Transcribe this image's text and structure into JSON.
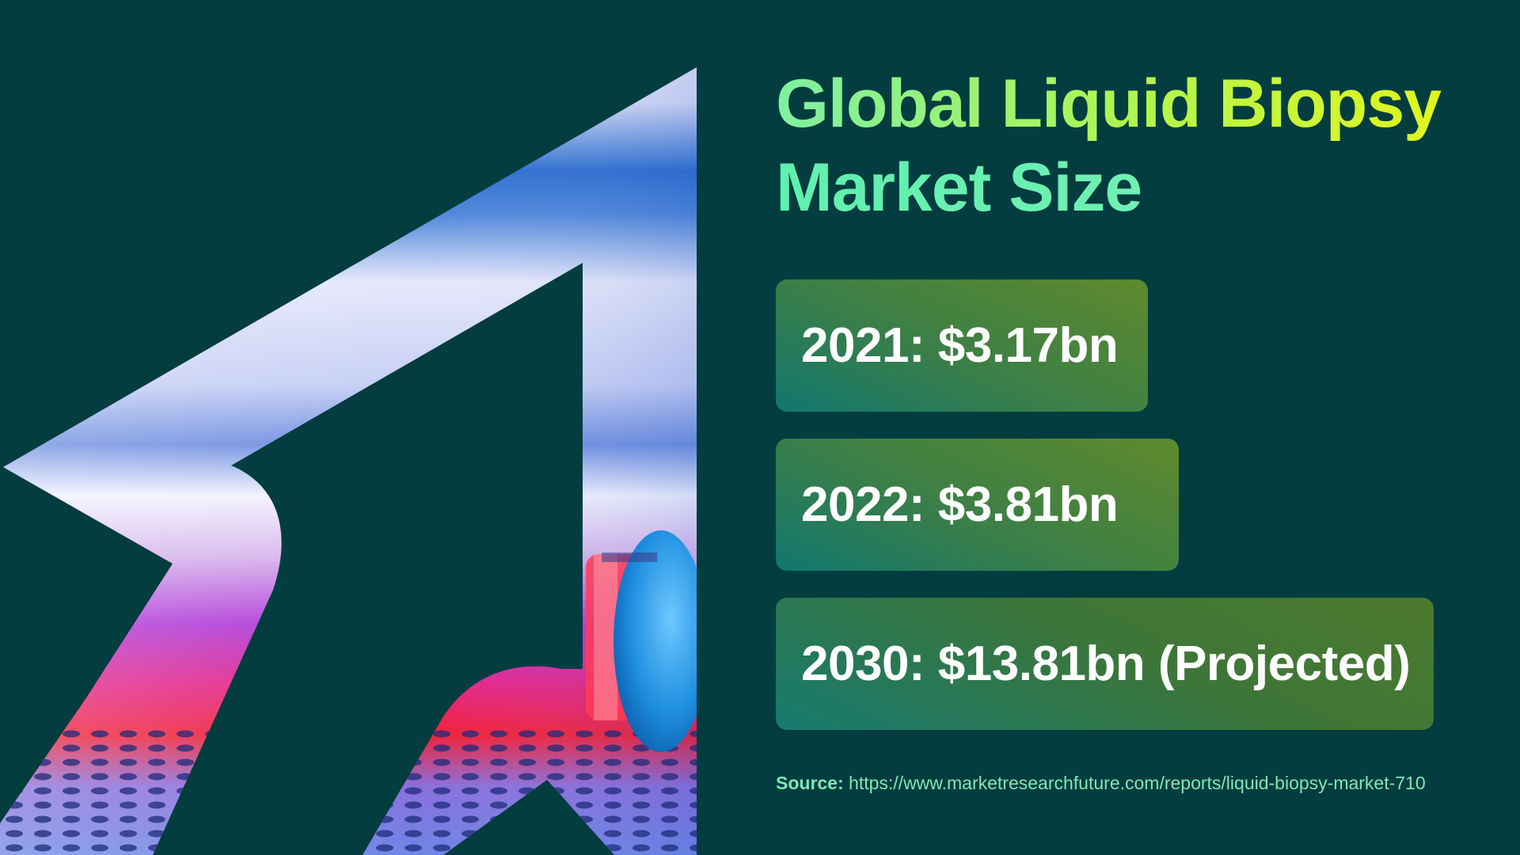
{
  "title": {
    "line1": "Global Liquid Biopsy",
    "line2": "Market Size"
  },
  "stats": [
    {
      "text": "2021: $3.17bn"
    },
    {
      "text": "2022: $3.81bn"
    },
    {
      "text": "2030: $13.81bn (Projected)"
    }
  ],
  "source": {
    "label": "Source:",
    "url": "https://www.marketresearchfuture.com/reports/liquid-biopsy-market-710"
  },
  "colors": {
    "background": "#033d3f",
    "title_green": "#6ef2b3",
    "title_yellow": "#e6f51a",
    "card_teal": "#11776f",
    "card_olive": "#5e8a2c",
    "source_text": "#7de8b5"
  },
  "image": {
    "description_icon": "arrow-cutout-lab-photo-icon"
  }
}
